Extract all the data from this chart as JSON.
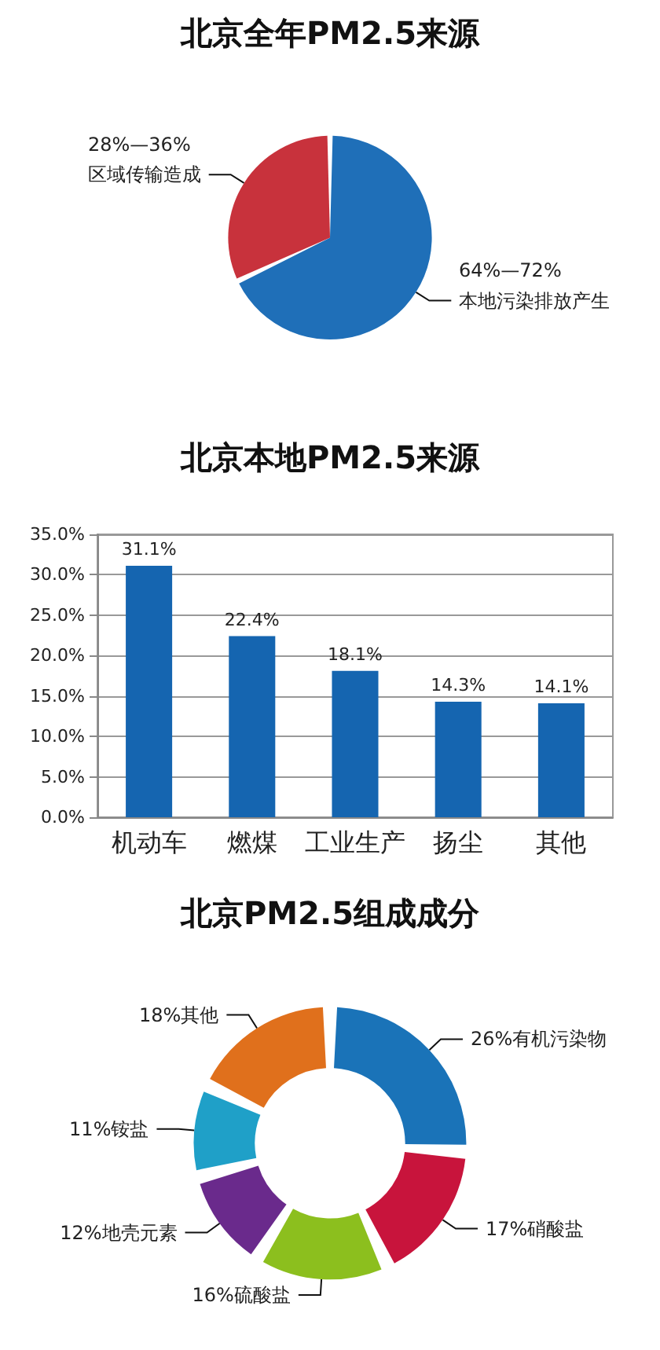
{
  "chart_data": [
    {
      "type": "pie",
      "title": "北京全年PM2.5来源",
      "categories": [
        "本地污染排放产生",
        "区域传输造成"
      ],
      "values": [
        68,
        32
      ],
      "annotations": [
        "64%—72%",
        "28%—36%"
      ],
      "colors": [
        "#1f6fb8",
        "#c8323c"
      ]
    },
    {
      "type": "bar",
      "title": "北京本地PM2.5来源",
      "categories": [
        "机动车",
        "燃煤",
        "工业生产",
        "扬尘",
        "其他"
      ],
      "values": [
        31.1,
        22.4,
        18.1,
        14.3,
        14.1
      ],
      "value_labels": [
        "31.1%",
        "22.4%",
        "18.1%",
        "14.3%",
        "14.1%"
      ],
      "color": "#1565b0",
      "ylim": [
        0,
        35
      ],
      "yticks": [
        {
          "value": 0,
          "label": "0.0%"
        },
        {
          "value": 5,
          "label": "5.0%"
        },
        {
          "value": 10,
          "label": "10.0%"
        },
        {
          "value": 15,
          "label": "15.0%"
        },
        {
          "value": 20,
          "label": "20.0%"
        },
        {
          "value": 25,
          "label": "25.0%"
        },
        {
          "value": 30,
          "label": "30.0%"
        },
        {
          "value": 35,
          "label": "35.0%"
        }
      ],
      "grid": "y"
    },
    {
      "type": "donut",
      "title": "北京PM2.5组成成分",
      "categories": [
        "有机污染物",
        "硝酸盐",
        "硫酸盐",
        "地壳元素",
        "铵盐",
        "其他"
      ],
      "values": [
        26,
        17,
        16,
        12,
        11,
        18
      ],
      "value_labels": [
        "26%",
        "17%",
        "16%",
        "12%",
        "11%",
        "18%"
      ],
      "colors": [
        "#1a73b8",
        "#c8143c",
        "#8cbf1e",
        "#6a2a8c",
        "#1fa0c8",
        "#e0701c"
      ]
    }
  ]
}
